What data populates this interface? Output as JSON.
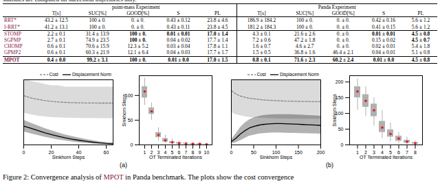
{
  "top_text": "statistics are computed on successful trajectories only.",
  "table": {
    "groups": [
      "point-mass Experiment",
      "Panda Experiment"
    ],
    "columns": [
      "T[s]",
      "SUC[%]",
      "GOOD[%]",
      "S",
      "PL"
    ],
    "method_color": "#8b1a4a",
    "rows": [
      {
        "method": "RRT*",
        "cells": [
          "43.2 ± 12.5",
          "100 ± 0.",
          "0. ± 0.",
          "0.43 ± 0.12",
          "23.8 ± 4.6",
          "186.9 ± 184.2",
          "100 ± 0.",
          "0. ± 0.",
          "0.42 ± 0.16",
          "5.6 ± 1.2"
        ],
        "bold": []
      },
      {
        "method": "I-RRT*",
        "cells": [
          "41.2 ± 13.1",
          "100 ± 0.",
          "0. ± 0.",
          "0.43 ± 0.11",
          "23.8 ± 4.5",
          "181.2 ± 184.3",
          "100 ± 0.",
          "0. ± 0.",
          "0.41 ± 0.15",
          "5.6 ± 1.2"
        ],
        "bold": []
      },
      {
        "method": "STOMP",
        "cells": [
          "2.2 ± 0.1",
          "31.4 ± 13.9",
          "100 ± 0.",
          "0.01 ± 0.01",
          "17.0 ± 1.4",
          "4.3 ± 0.1",
          "21.6 ± 2.6",
          "0. ± 0.",
          "0.01 ± 0.01",
          "4.5 ± 0.8"
        ],
        "bold": [
          2,
          3,
          4,
          8,
          9
        ]
      },
      {
        "method": "SGPMP",
        "cells": [
          "2.7 ± 0.1",
          "74.9 ± 23.5",
          "100 ± 0.",
          "0.04 ± 0.02",
          "17.7 ± 1.4",
          "7.2 ± 0.6",
          "47.2 ± 1.8",
          "0. ± 0.",
          "0.15 ± 0.02",
          "4.5 ± 0.7"
        ],
        "bold": [
          2,
          9
        ]
      },
      {
        "method": "CHOMP",
        "cells": [
          "0.6 ± 0.1",
          "70.6 ± 15.9",
          "12.3 ± 5.2",
          "0.03 ± 0.04",
          "17.8 ± 1.1",
          "1.6 ± 0.7",
          "4.6 ± 2.7",
          "0. ± 0.",
          "0.02 ± 0.01",
          "5.4 ± 1.8"
        ],
        "bold": []
      },
      {
        "method": "GPMP2",
        "cells": [
          "0.6 ± 0.1",
          "60.3 ± 21.9",
          "12.1 ± 6.4",
          "0.04 ± 0.03",
          "17.7 ± 1.7",
          "1.5 ± 0.5",
          "36.8 ± 1.6",
          "46.4 ± 2.1",
          "0.04 ± 0.01",
          "5.1 ± 0.8"
        ],
        "bold": []
      },
      {
        "method": "MPOT",
        "cells": [
          "0.4 ± 0.0",
          "99.2 ± 3.1",
          "100 ± 0.",
          "0.01 ± 0.0",
          "17.0 ± 1.5",
          "0.8 ± 0.1",
          "71.6 ± 2.3",
          "60.2 ± 2.4",
          "0.01 ± 0.0",
          "4.5 ± 0.8"
        ],
        "bold": [
          0,
          1,
          2,
          3,
          4,
          5,
          6,
          7,
          8,
          9
        ],
        "method_bold": true
      }
    ]
  },
  "chart_data": [
    {
      "type": "line",
      "x_label": "Sinkhorn Steps",
      "x": [
        0,
        5,
        10,
        15,
        20,
        25,
        30,
        35,
        40,
        45,
        50,
        55,
        60,
        65
      ],
      "xlim": [
        0,
        65
      ],
      "xticks": [
        0,
        20,
        40,
        60
      ],
      "ylim": [
        0,
        0.45
      ],
      "tick_labels": "x",
      "legend": "top-right",
      "series": [
        {
          "name": "Cost",
          "color": "#888888",
          "line_style": "dashed",
          "values": [
            0.34,
            0.325,
            0.315,
            0.307,
            0.301,
            0.297,
            0.294,
            0.292,
            0.291,
            0.29,
            0.29,
            0.289,
            0.289,
            0.289
          ],
          "lower": [
            0.22,
            0.21,
            0.2,
            0.195,
            0.19,
            0.188,
            0.186,
            0.185,
            0.184,
            0.183,
            0.183,
            0.182,
            0.182,
            0.182
          ],
          "upper": [
            0.46,
            0.44,
            0.43,
            0.42,
            0.41,
            0.41,
            0.4,
            0.4,
            0.4,
            0.4,
            0.4,
            0.4,
            0.4,
            0.4
          ]
        },
        {
          "name": "Displacement Norm",
          "color": "#000000",
          "line_style": "solid",
          "values": [
            0.13,
            0.115,
            0.1,
            0.085,
            0.072,
            0.06,
            0.049,
            0.04,
            0.032,
            0.025,
            0.019,
            0.014,
            0.01,
            0.008
          ],
          "lower": [
            0.09,
            0.078,
            0.066,
            0.055,
            0.045,
            0.036,
            0.028,
            0.021,
            0.015,
            0.011,
            0.007,
            0.005,
            0.003,
            0.002
          ],
          "upper": [
            0.17,
            0.152,
            0.134,
            0.115,
            0.099,
            0.084,
            0.07,
            0.059,
            0.049,
            0.039,
            0.031,
            0.023,
            0.017,
            0.014
          ]
        }
      ]
    },
    {
      "type": "violin",
      "x_label": "OT Terminated Iterations",
      "y_label": "Sinkhorn Steps",
      "categories": [
        1,
        2,
        3,
        4,
        5,
        6,
        7,
        8,
        9,
        10
      ],
      "ylim": [
        0,
        140
      ],
      "yticks": [
        0,
        50,
        100
      ],
      "color": "#b0b0b0",
      "median_color": "#e41a1c",
      "median": [
        108,
        68,
        20,
        9,
        5,
        3,
        2,
        2,
        2,
        1
      ],
      "q1": [
        95,
        62,
        15,
        6,
        3,
        2,
        2,
        1,
        1,
        1
      ],
      "q3": [
        118,
        75,
        25,
        13,
        7,
        5,
        4,
        3,
        3,
        2
      ],
      "min": [
        80,
        50,
        8,
        3,
        1,
        1,
        1,
        1,
        1,
        1
      ],
      "max": [
        135,
        85,
        35,
        20,
        12,
        8,
        6,
        5,
        4,
        3
      ]
    },
    {
      "type": "line",
      "x_label": "Sinkhorn Steps",
      "x": [
        0,
        10,
        20,
        30,
        40,
        50,
        60,
        70,
        80,
        90,
        100,
        110,
        120,
        130,
        140,
        150,
        160,
        170,
        180,
        190,
        200
      ],
      "xlim": [
        0,
        200
      ],
      "xticks": [
        0,
        50,
        100,
        150,
        200
      ],
      "ylim": [
        0,
        0.6
      ],
      "tick_labels": "x",
      "legend": "top-right",
      "series": [
        {
          "name": "Cost",
          "color": "#888888",
          "line_style": "dashed",
          "values": [
            0.5,
            0.47,
            0.45,
            0.44,
            0.43,
            0.425,
            0.42,
            0.415,
            0.412,
            0.41,
            0.408,
            0.406,
            0.404,
            0.403,
            0.402,
            0.401,
            0.4,
            0.4,
            0.399,
            0.399,
            0.398
          ],
          "lower": [
            0.3,
            0.28,
            0.27,
            0.26,
            0.255,
            0.25,
            0.248,
            0.246,
            0.244,
            0.243,
            0.242,
            0.241,
            0.24,
            0.24,
            0.239,
            0.239,
            0.238,
            0.238,
            0.238,
            0.237,
            0.237
          ],
          "upper": [
            0.7,
            0.67,
            0.65,
            0.64,
            0.63,
            0.62,
            0.62,
            0.61,
            0.61,
            0.61,
            0.61,
            0.61,
            0.61,
            0.61,
            0.61,
            0.61,
            0.61,
            0.61,
            0.61,
            0.61,
            0.61
          ]
        },
        {
          "name": "Displacement Norm",
          "color": "#000000",
          "line_style": "solid",
          "values": [
            0.03,
            0.06,
            0.1,
            0.13,
            0.155,
            0.17,
            0.18,
            0.188,
            0.192,
            0.195,
            0.196,
            0.196,
            0.195,
            0.194,
            0.192,
            0.19,
            0.188,
            0.186,
            0.184,
            0.182,
            0.18
          ],
          "lower": [
            0.01,
            0.02,
            0.04,
            0.06,
            0.08,
            0.09,
            0.1,
            0.105,
            0.108,
            0.11,
            0.11,
            0.11,
            0.109,
            0.108,
            0.107,
            0.106,
            0.105,
            0.104,
            0.103,
            0.102,
            0.1
          ],
          "upper": [
            0.05,
            0.1,
            0.16,
            0.2,
            0.23,
            0.25,
            0.26,
            0.27,
            0.275,
            0.278,
            0.28,
            0.28,
            0.28,
            0.279,
            0.278,
            0.276,
            0.274,
            0.272,
            0.27,
            0.268,
            0.266
          ]
        }
      ]
    },
    {
      "type": "violin",
      "x_label": "OT Terminated Iterations",
      "y_label": "Sinkhorn Steps",
      "categories": [
        1,
        2,
        3,
        4,
        5,
        6,
        7,
        8
      ],
      "ylim": [
        0,
        220
      ],
      "yticks": [
        0,
        50,
        100,
        150,
        200
      ],
      "color": "#b0b0b0",
      "median_color": "#e41a1c",
      "median": [
        170,
        140,
        110,
        55,
        35,
        20,
        10,
        5
      ],
      "q1": [
        150,
        120,
        90,
        40,
        25,
        12,
        6,
        3
      ],
      "q3": [
        185,
        160,
        130,
        75,
        48,
        28,
        15,
        8
      ],
      "min": [
        110,
        90,
        60,
        20,
        10,
        5,
        2,
        1
      ],
      "max": [
        210,
        185,
        150,
        110,
        70,
        40,
        25,
        12
      ]
    }
  ],
  "panel_labels": [
    "(a)",
    "(b)"
  ],
  "caption": {
    "prefix": "Figure 2: Convergence analysis of ",
    "link": "MPOT",
    "suffix": " in Panda benchmark. The plots show the cost convergence"
  }
}
